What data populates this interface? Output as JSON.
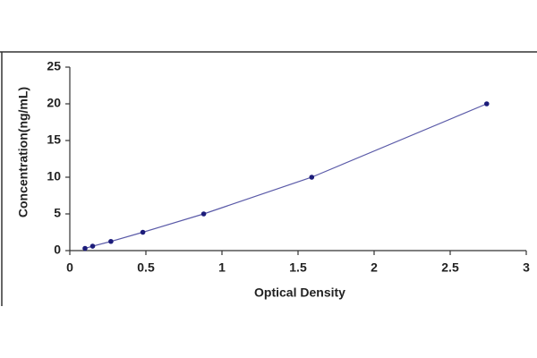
{
  "chart_data": {
    "type": "line",
    "x_label": "Optical Density",
    "y_label": "Concentration(ng/mL)",
    "x": [
      0.1,
      0.15,
      0.27,
      0.48,
      0.88,
      1.59,
      2.74
    ],
    "values": [
      0.3,
      0.6,
      1.25,
      2.5,
      5,
      10,
      20
    ],
    "color": "#1c1c7a",
    "line_color": "#5a5aa8",
    "xlim": [
      0,
      3
    ],
    "xticks": [
      0,
      0.5,
      1,
      1.5,
      2,
      2.5,
      3
    ],
    "ylim": [
      0,
      25
    ],
    "yticks": [
      0,
      5,
      10,
      15,
      20,
      25
    ],
    "grid": false
  }
}
